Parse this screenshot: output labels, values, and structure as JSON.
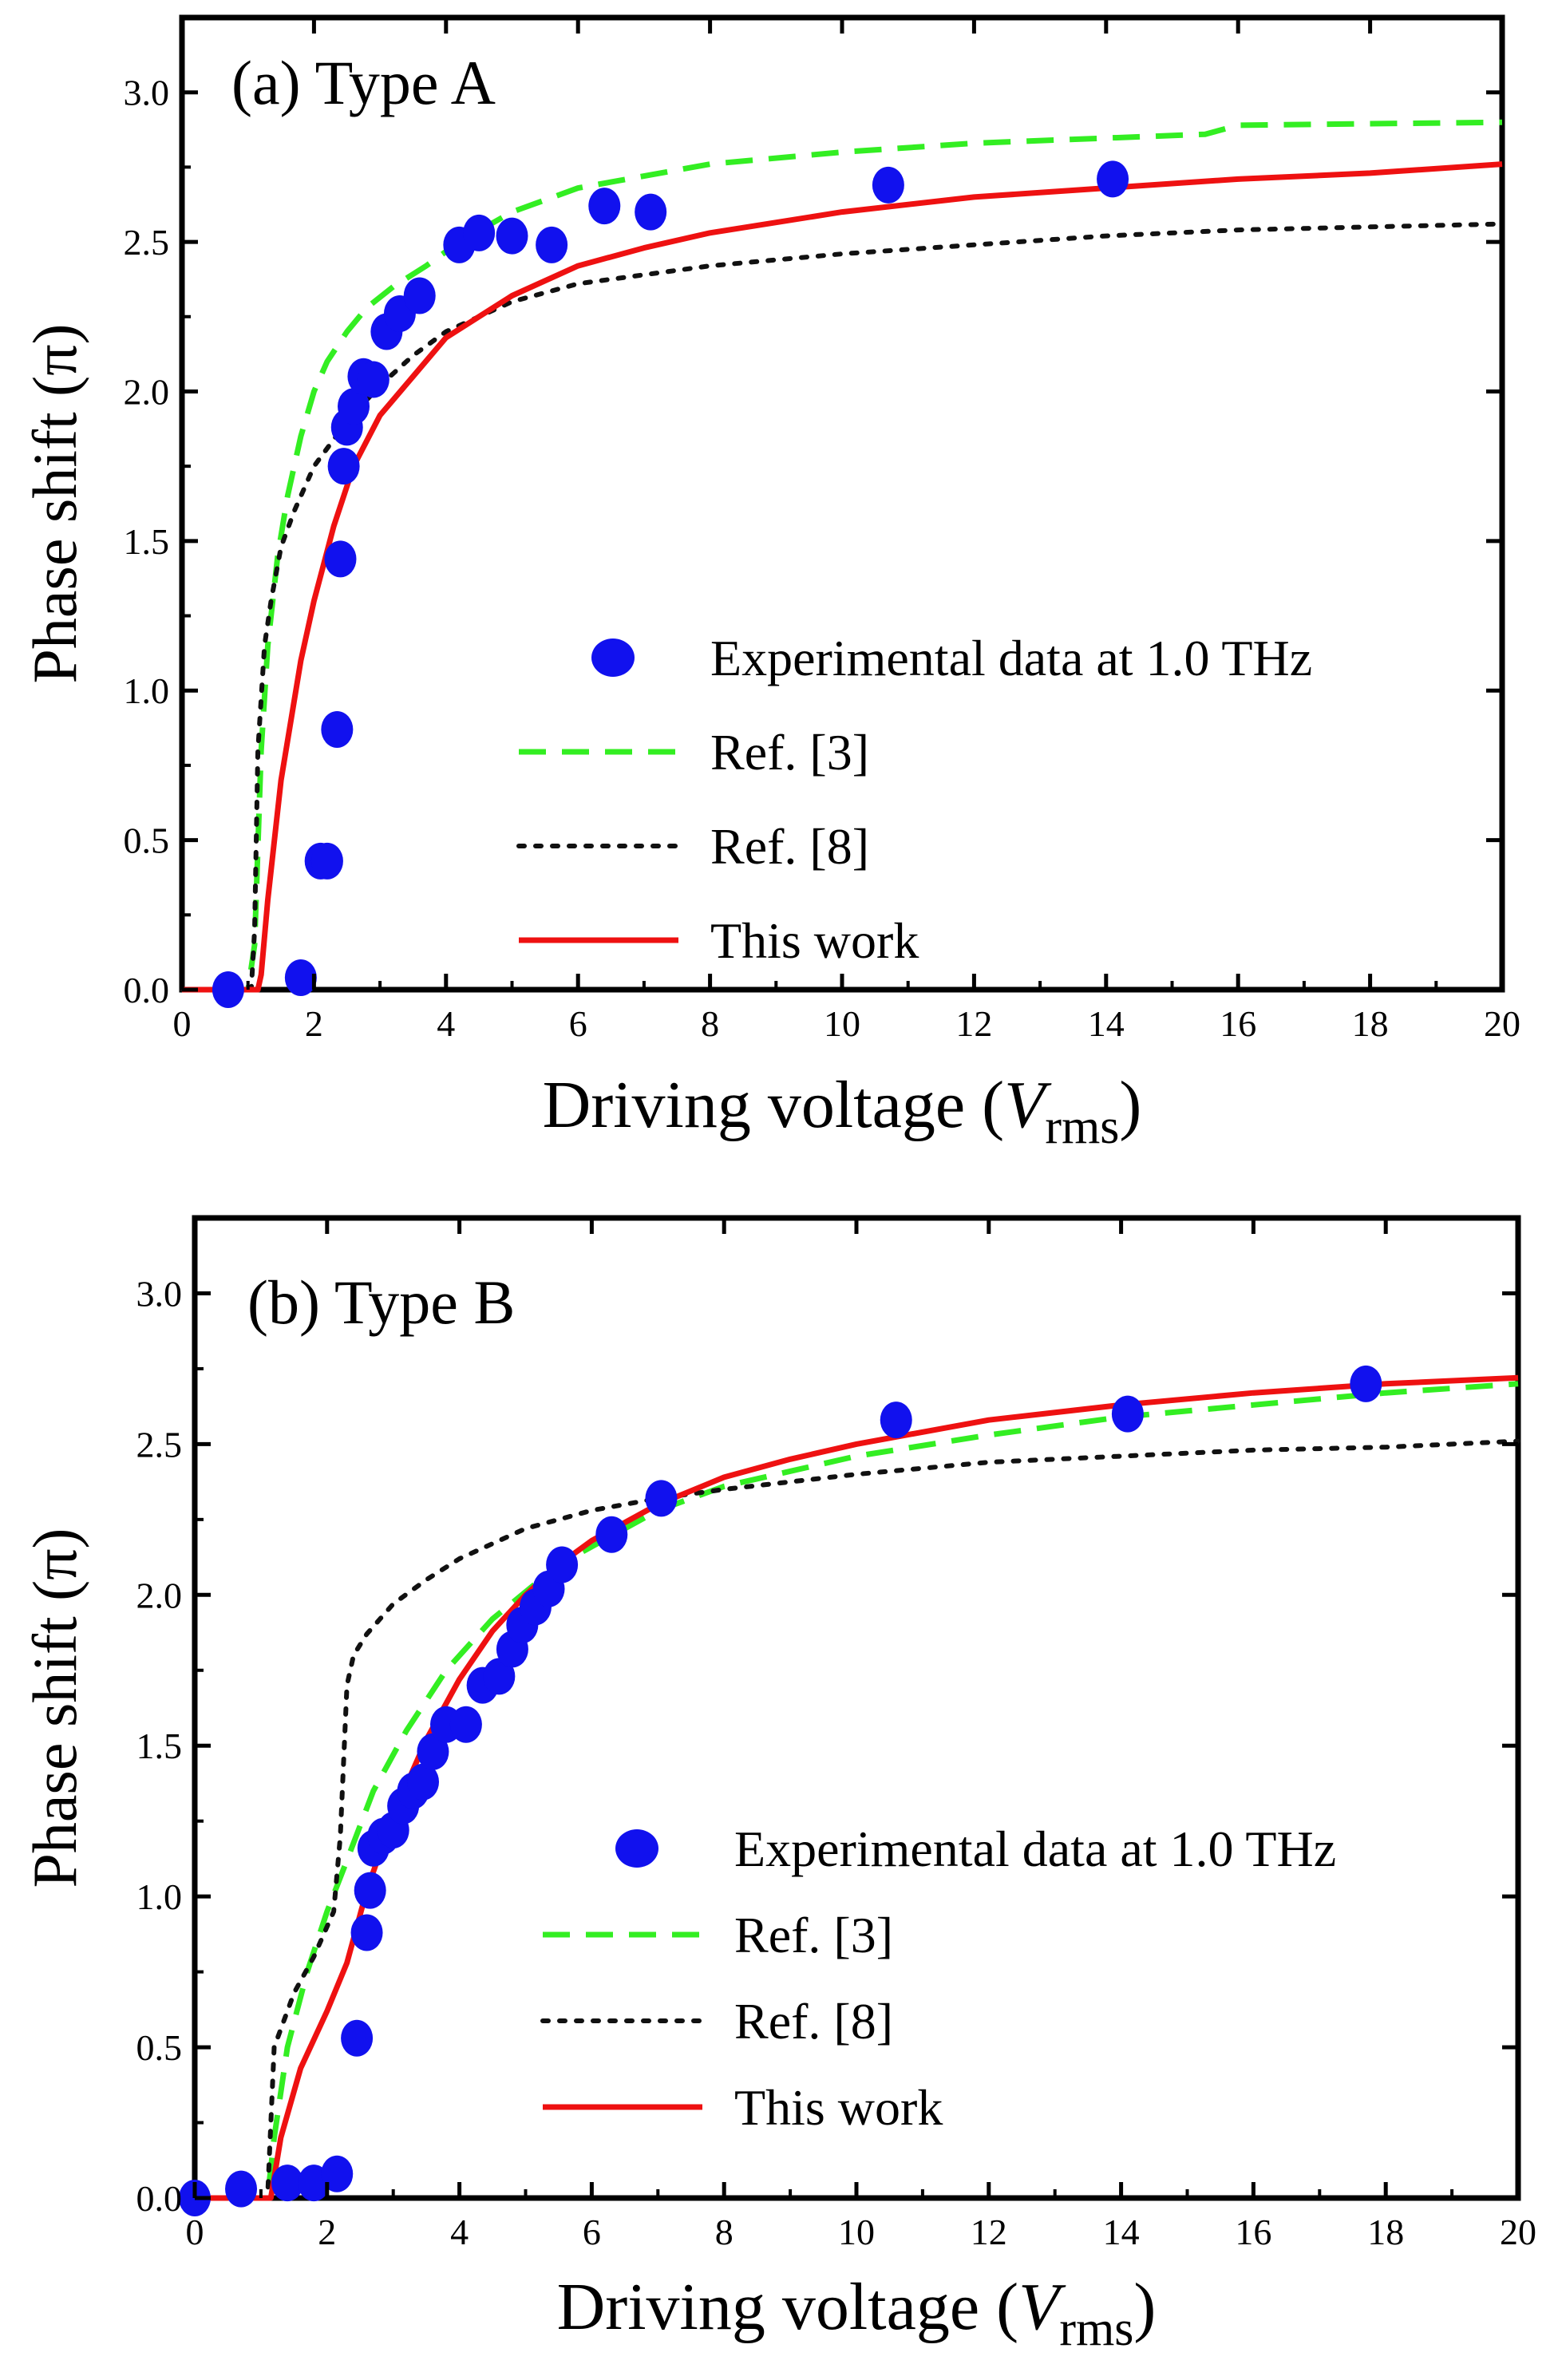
{
  "figure": {
    "line_colors": {
      "ref3": "#33ee22",
      "ref8": "#111111",
      "this_work": "#ee1111",
      "exp": "#1111ee"
    }
  },
  "chart_data": [
    {
      "type": "line",
      "panel_label": "(a)  Type A",
      "xlabel": "Driving voltage (",
      "xlabel_var": "V",
      "xlabel_sub": "rms",
      "xlabel_close": ")",
      "ylabel": "Phase shift (π)",
      "xlim": [
        0,
        20
      ],
      "ylim": [
        0,
        3.25
      ],
      "xticks": [
        0,
        2,
        4,
        6,
        8,
        10,
        12,
        14,
        16,
        18,
        20
      ],
      "yticks": [
        0.0,
        0.5,
        1.0,
        1.5,
        2.0,
        2.5,
        3.0
      ],
      "ytick_labels": [
        "0.0",
        "0.5",
        "1.0",
        "1.5",
        "2.0",
        "2.5",
        "3.0"
      ],
      "legend": [
        "Experimental data at 1.0 THz",
        "Ref. [3]",
        "Ref. [8]",
        "This work"
      ],
      "series": [
        {
          "name": "Experimental data at 1.0 THz",
          "style": "markers",
          "x": [
            0.7,
            1.8,
            2.1,
            2.2,
            2.35,
            2.4,
            2.45,
            2.5,
            2.6,
            2.75,
            2.9,
            3.1,
            3.3,
            3.6,
            4.2,
            4.5,
            5.0,
            5.6,
            6.4,
            7.1,
            10.7,
            14.1
          ],
          "y": [
            0.0,
            0.04,
            0.43,
            0.43,
            0.87,
            1.44,
            1.75,
            1.88,
            1.95,
            2.05,
            2.04,
            2.2,
            2.26,
            2.32,
            2.49,
            2.53,
            2.52,
            2.49,
            2.62,
            2.6,
            2.69,
            2.71
          ]
        },
        {
          "name": "Ref. [3]",
          "style": "dashed",
          "x": [
            0,
            1.0,
            1.1,
            1.2,
            1.3,
            1.45,
            1.6,
            1.8,
            2.0,
            2.2,
            2.5,
            2.8,
            3.2,
            3.7,
            4.2,
            5.0,
            6.0,
            7.0,
            8.0,
            10.0,
            12.0,
            15.5,
            16.0,
            20.0
          ],
          "y": [
            0,
            0,
            0.15,
            0.8,
            1.15,
            1.45,
            1.65,
            1.85,
            2.0,
            2.1,
            2.2,
            2.28,
            2.35,
            2.42,
            2.5,
            2.6,
            2.68,
            2.72,
            2.76,
            2.8,
            2.83,
            2.86,
            2.89,
            2.9
          ]
        },
        {
          "name": "Ref. [8]",
          "style": "dotted",
          "x": [
            0,
            1.05,
            1.1,
            1.15,
            1.25,
            1.35,
            1.5,
            1.7,
            2.0,
            2.5,
            3.0,
            3.5,
            4.0,
            5.0,
            6.0,
            8.0,
            10.0,
            12.0,
            14.0,
            16.0,
            18.0,
            20.0
          ],
          "y": [
            0,
            0,
            0.2,
            0.8,
            1.15,
            1.3,
            1.48,
            1.6,
            1.75,
            1.9,
            2.02,
            2.12,
            2.2,
            2.3,
            2.36,
            2.42,
            2.46,
            2.49,
            2.52,
            2.54,
            2.55,
            2.56
          ]
        },
        {
          "name": "This work",
          "style": "solid",
          "x": [
            0,
            1.15,
            1.2,
            1.3,
            1.5,
            1.8,
            2.0,
            2.3,
            2.6,
            3.0,
            3.5,
            4.0,
            5.0,
            6.0,
            7.0,
            8.0,
            10.0,
            12.0,
            14.0,
            16.0,
            18.0,
            20.0
          ],
          "y": [
            0,
            0,
            0.05,
            0.3,
            0.7,
            1.1,
            1.3,
            1.55,
            1.75,
            1.92,
            2.05,
            2.18,
            2.32,
            2.42,
            2.48,
            2.53,
            2.6,
            2.65,
            2.68,
            2.71,
            2.73,
            2.76
          ]
        }
      ]
    },
    {
      "type": "line",
      "panel_label": "(b)  Type B",
      "xlabel": "Driving voltage (",
      "xlabel_var": "V",
      "xlabel_sub": "rms",
      "xlabel_close": ")",
      "ylabel": "Phase shift (π)",
      "xlim": [
        0,
        20
      ],
      "ylim": [
        0,
        3.25
      ],
      "xticks": [
        0,
        2,
        4,
        6,
        8,
        10,
        12,
        14,
        16,
        18,
        20
      ],
      "yticks": [
        0.0,
        0.5,
        1.0,
        1.5,
        2.0,
        2.5,
        3.0
      ],
      "ytick_labels": [
        "0.0",
        "0.5",
        "1.0",
        "1.5",
        "2.0",
        "2.5",
        "3.0"
      ],
      "legend": [
        "Experimental data at 1.0 THz",
        "Ref. [3]",
        "Ref. [8]",
        "This work"
      ],
      "series": [
        {
          "name": "Experimental data at 1.0 THz",
          "style": "markers",
          "x": [
            0,
            0.7,
            1.4,
            1.8,
            2.15,
            2.45,
            2.6,
            2.65,
            2.7,
            2.85,
            3.0,
            3.15,
            3.3,
            3.45,
            3.6,
            3.8,
            4.1,
            4.35,
            4.6,
            4.8,
            4.95,
            5.15,
            5.35,
            5.55,
            6.3,
            7.05,
            10.6,
            14.1,
            17.7
          ],
          "y": [
            0.0,
            0.03,
            0.05,
            0.05,
            0.08,
            0.53,
            0.88,
            1.02,
            1.16,
            1.2,
            1.22,
            1.3,
            1.35,
            1.38,
            1.48,
            1.57,
            1.57,
            1.7,
            1.73,
            1.82,
            1.9,
            1.96,
            2.02,
            2.1,
            2.2,
            2.32,
            2.58,
            2.6,
            2.7
          ]
        },
        {
          "name": "Ref. [3]",
          "style": "dashed",
          "x": [
            0,
            1.1,
            1.2,
            1.4,
            1.7,
            2.0,
            2.3,
            2.7,
            3.2,
            3.8,
            4.5,
            5.5,
            7.0,
            8.0,
            10.0,
            12.0,
            14.0,
            16.0,
            18.0,
            20.0
          ],
          "y": [
            0,
            0,
            0.2,
            0.5,
            0.75,
            0.95,
            1.12,
            1.35,
            1.55,
            1.75,
            1.92,
            2.1,
            2.28,
            2.36,
            2.46,
            2.53,
            2.59,
            2.63,
            2.67,
            2.7
          ]
        },
        {
          "name": "Ref. [8]",
          "style": "dotted",
          "x": [
            0,
            1.1,
            1.2,
            1.5,
            1.8,
            2.1,
            2.2,
            2.3,
            2.4,
            2.6,
            3.0,
            3.5,
            4.0,
            5.0,
            6.0,
            7.0,
            8.0,
            10.0,
            12.0,
            14.0,
            16.0,
            18.0,
            20.0
          ],
          "y": [
            0,
            0,
            0.5,
            0.68,
            0.8,
            0.95,
            1.2,
            1.7,
            1.8,
            1.87,
            1.97,
            2.05,
            2.12,
            2.22,
            2.28,
            2.32,
            2.35,
            2.4,
            2.44,
            2.46,
            2.48,
            2.49,
            2.51
          ]
        },
        {
          "name": "This work",
          "style": "solid",
          "x": [
            0,
            1.15,
            1.3,
            1.6,
            2.0,
            2.3,
            2.6,
            3.0,
            3.5,
            4.0,
            4.5,
            5.0,
            5.5,
            6.0,
            7.0,
            8.0,
            9.0,
            10.0,
            12.0,
            14.0,
            16.0,
            18.0,
            20.0
          ],
          "y": [
            0,
            0,
            0.2,
            0.43,
            0.62,
            0.78,
            1.02,
            1.27,
            1.52,
            1.72,
            1.88,
            2.0,
            2.1,
            2.18,
            2.3,
            2.39,
            2.45,
            2.5,
            2.58,
            2.63,
            2.67,
            2.7,
            2.72
          ]
        }
      ]
    }
  ]
}
